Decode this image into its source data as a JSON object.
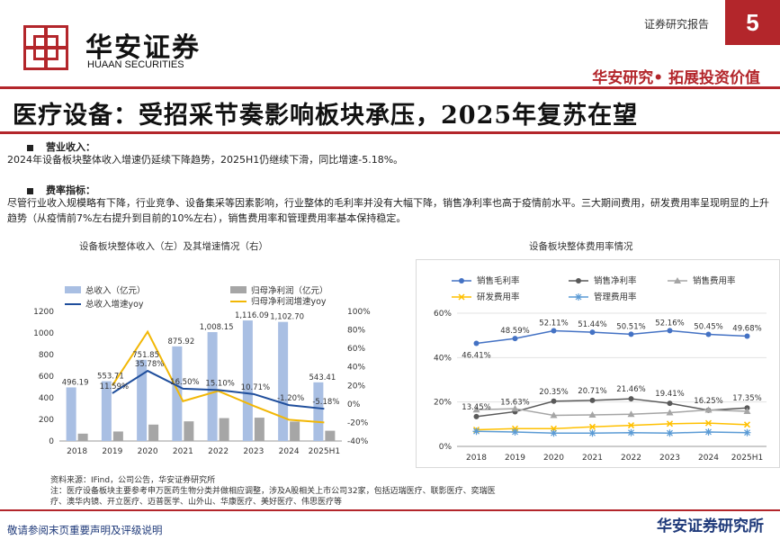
{
  "header": {
    "brand_cn": "华安证券",
    "brand_en": "HUAAN SECURITIES",
    "report_type": "证券研究报告",
    "page_number": "5",
    "slogan": "华安研究• 拓展投资价值"
  },
  "title": "医疗设备：受招采节奏影响板块承压，2025年复苏在望",
  "sections": [
    {
      "heading": "营业收入",
      "text": "2024年设备板块整体收入增速仍延续下降趋势，2025H1仍继续下滑，同比增速-5.18%。"
    },
    {
      "heading": "费率指标",
      "text": "尽管行业收入规模略有下降，行业竞争、设备集采等因素影响，行业整体的毛利率并没有大幅下降，销售净利率也高于疫情前水平。三大期间费用，研发费用率呈现明显的上升趋势（从疫情前7%左右提升到目前的10%左右），销售费用率和管理费用率基本保持稳定。"
    }
  ],
  "chart_data": [
    {
      "type": "bar",
      "title": "设备板块整体收入（左）及其增速情况（右）",
      "categories": [
        "2018",
        "2019",
        "2020",
        "2021",
        "2022",
        "2023",
        "2024",
        "2025H1"
      ],
      "series": [
        {
          "name": "总收入（亿元）",
          "kind": "bar",
          "axis": "left",
          "color": "#a9bfe3",
          "values": [
            496.19,
            553.71,
            751.85,
            875.92,
            1008.15,
            1116.09,
            1102.7,
            543.41
          ]
        },
        {
          "name": "归母净利润（亿元）",
          "kind": "bar",
          "axis": "left",
          "color": "#a6a6a6",
          "values": [
            68,
            88,
            152,
            182,
            212,
            216,
            180,
            95
          ]
        },
        {
          "name": "总收入增速yoy",
          "kind": "line",
          "axis": "right",
          "color": "#1f4e9c",
          "values": [
            null,
            11.59,
            35.78,
            16.5,
            15.1,
            10.71,
            -1.2,
            -5.18
          ]
        },
        {
          "name": "归母净利润增速yoy",
          "kind": "line",
          "axis": "right",
          "color": "#f2b705",
          "values": [
            null,
            20,
            78,
            3,
            14,
            -2,
            -17,
            -20
          ]
        }
      ],
      "data_labels": {
        "revenue": [
          "496.19",
          "553.71",
          "751.85",
          "875.92",
          "1,008.15",
          "1,116.09",
          "1,102.70",
          "543.41"
        ],
        "growth": [
          "",
          "11.59%",
          "35.78%",
          "16.50%",
          "15.10%",
          "10.71%",
          "-1.20%",
          "-5.18%"
        ]
      },
      "ylim": [
        0,
        1200
      ],
      "yticks": [
        "0",
        "200",
        "400",
        "600",
        "800",
        "1000",
        "1200"
      ],
      "y2lim": [
        -40,
        100
      ],
      "y2ticks": [
        "-40%",
        "-20%",
        "0%",
        "20%",
        "40%",
        "60%",
        "80%",
        "100%"
      ]
    },
    {
      "type": "line",
      "title": "设备板块整体费用率情况",
      "categories": [
        "2018",
        "2019",
        "2020",
        "2021",
        "2022",
        "2023",
        "2024",
        "2025H1"
      ],
      "series": [
        {
          "name": "销售毛利率",
          "marker": "circle",
          "color": "#4472c4",
          "values": [
            46.41,
            48.59,
            52.11,
            51.44,
            50.51,
            52.16,
            50.45,
            49.68
          ]
        },
        {
          "name": "销售净利率",
          "marker": "circle",
          "color": "#595959",
          "values": [
            13.45,
            15.63,
            20.35,
            20.71,
            21.46,
            19.41,
            16.25,
            17.35
          ]
        },
        {
          "name": "销售费用率",
          "marker": "triangle",
          "color": "#a5a5a5",
          "values": [
            16.5,
            17,
            14,
            14.2,
            14.5,
            15.2,
            16.4,
            15.8
          ]
        },
        {
          "name": "研发费用率",
          "marker": "x",
          "color": "#ffc000",
          "values": [
            7.5,
            8,
            8,
            8.8,
            9.5,
            10.2,
            10.5,
            9.8
          ]
        },
        {
          "name": "管理费用率",
          "marker": "star",
          "color": "#5b9bd5",
          "values": [
            6.8,
            6.5,
            6,
            6,
            6.2,
            6,
            6.5,
            6.2
          ]
        }
      ],
      "data_labels": {
        "gross": [
          "46.41%",
          "48.59%",
          "52.11%",
          "51.44%",
          "50.51%",
          "52.16%",
          "50.45%",
          "49.68%"
        ],
        "net": [
          "13.45%",
          "15.63%",
          "20.35%",
          "20.71%",
          "21.46%",
          "19.41%",
          "16.25%",
          "17.35%"
        ]
      },
      "ylim": [
        0,
        60
      ],
      "yticks": [
        "0%",
        "20%",
        "40%",
        "60%"
      ]
    }
  ],
  "notes": [
    "资料来源：IFind，公司公告，华安证券研究所",
    "注：医疗设备板块主要参考申万医药生物分类并做相应调整，涉及A股相关上市公司32家，包括迈瑞医疗、联影医疗、奕瑞医疗、澳华内镜、开立医疗、迈普医学、山外山、华康医疗、美好医疗、伟思医疗等"
  ],
  "footer": {
    "disclaimer": "敬请参阅末页重要声明及评级说明",
    "institute": "华安证券研究所"
  }
}
